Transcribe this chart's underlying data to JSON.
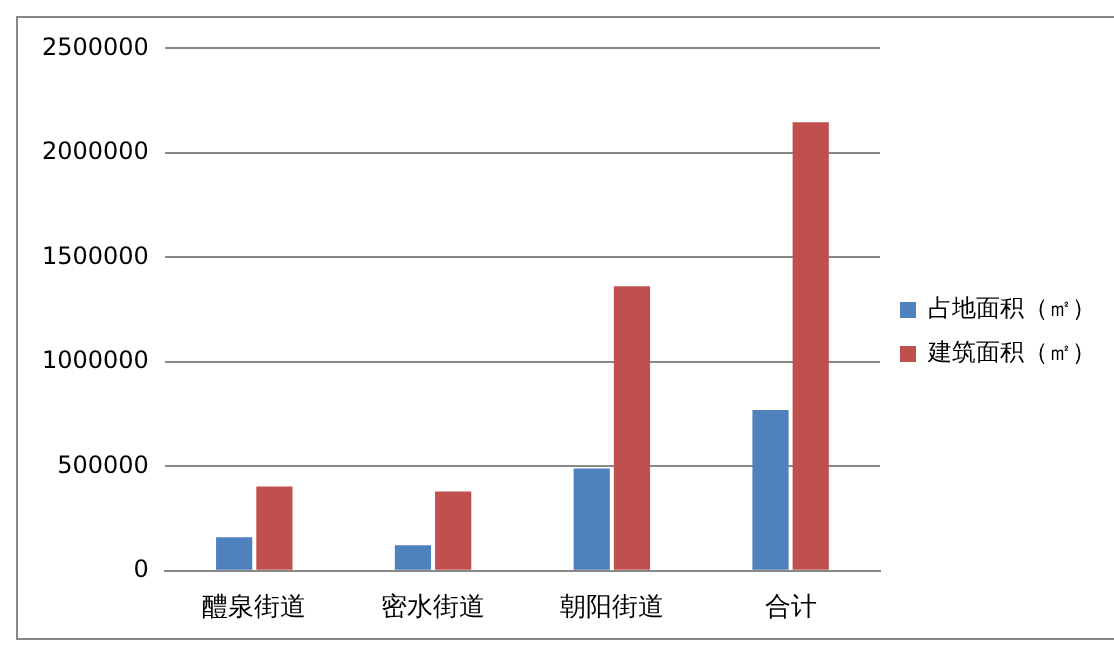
{
  "chart_data": {
    "type": "bar",
    "categories": [
      "醴泉街道",
      "密水街道",
      "朝阳街道",
      "合计"
    ],
    "series": [
      {
        "name": "占地面积（㎡）",
        "color": "#4f81bd",
        "values": [
          160000,
          122000,
          490000,
          770000
        ]
      },
      {
        "name": "建筑面积（㎡）",
        "color": "#c0504d",
        "values": [
          404000,
          380000,
          1362000,
          2147000
        ]
      }
    ],
    "ylim": [
      0,
      2500000
    ],
    "yticks": [
      0,
      500000,
      1000000,
      1500000,
      2000000,
      2500000
    ],
    "grid": "y",
    "legend": "right"
  }
}
